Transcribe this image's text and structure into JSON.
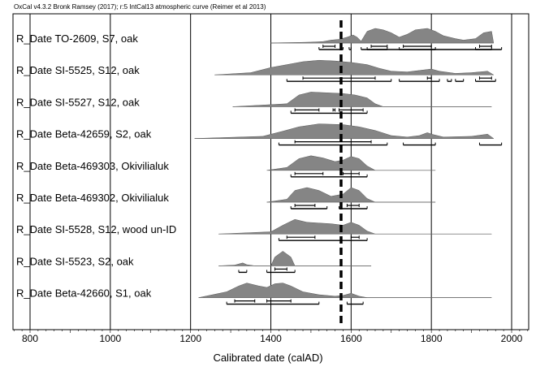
{
  "header": "OxCal v4.3.2 Bronk Ramsey (2017); r:5 IntCal13 atmospheric curve (Reimer et al 2013)",
  "chart_data": {
    "type": "area",
    "title": "",
    "header": "OxCal v4.3.2 Bronk Ramsey (2017); r:5 IntCal13 atmospheric curve (Reimer et al 2013)",
    "xlabel": "Calibrated date (calAD)",
    "ylabel": "",
    "xlim": [
      750,
      2050
    ],
    "x_ticks": [
      800,
      1000,
      1200,
      1400,
      1600,
      1800,
      2000
    ],
    "x_tick_labels": [
      "800",
      "1000",
      "1200",
      "1400",
      "1600",
      "1800",
      "2000"
    ],
    "reference_line": {
      "x": 1575,
      "style": "dashed"
    },
    "legend": "none",
    "grid": false,
    "series": [
      {
        "name": "R_Date TO-2609, S7, oak",
        "range": [
          1400,
          1955
        ],
        "density": [
          [
            1400,
            0
          ],
          [
            1430,
            2
          ],
          [
            1470,
            4
          ],
          [
            1500,
            6
          ],
          [
            1530,
            10
          ],
          [
            1550,
            20
          ],
          [
            1570,
            25
          ],
          [
            1590,
            40
          ],
          [
            1605,
            55
          ],
          [
            1615,
            40
          ],
          [
            1625,
            12
          ],
          [
            1640,
            80
          ],
          [
            1660,
            100
          ],
          [
            1680,
            90
          ],
          [
            1700,
            70
          ],
          [
            1720,
            40
          ],
          [
            1740,
            60
          ],
          [
            1760,
            90
          ],
          [
            1790,
            100
          ],
          [
            1810,
            80
          ],
          [
            1830,
            50
          ],
          [
            1860,
            30
          ],
          [
            1880,
            20
          ],
          [
            1910,
            30
          ],
          [
            1930,
            70
          ],
          [
            1950,
            80
          ],
          [
            1955,
            0
          ]
        ],
        "hpd_95": [
          [
            1520,
            1580
          ],
          [
            1595,
            1600
          ],
          [
            1625,
            1975
          ],
          [
            1640,
            1690
          ],
          [
            1720,
            1810
          ],
          [
            1910,
            1950
          ]
        ],
        "hpd_68": [
          [
            1530,
            1560
          ],
          [
            1650,
            1690
          ],
          [
            1730,
            1800
          ],
          [
            1920,
            1950
          ]
        ]
      },
      {
        "name": "R_Date SI-5525, S12, oak",
        "range": [
          1260,
          1955
        ],
        "density": [
          [
            1260,
            0
          ],
          [
            1350,
            15
          ],
          [
            1400,
            50
          ],
          [
            1440,
            70
          ],
          [
            1480,
            90
          ],
          [
            1520,
            100
          ],
          [
            1560,
            95
          ],
          [
            1600,
            85
          ],
          [
            1640,
            70
          ],
          [
            1670,
            45
          ],
          [
            1700,
            25
          ],
          [
            1740,
            20
          ],
          [
            1770,
            30
          ],
          [
            1800,
            40
          ],
          [
            1820,
            25
          ],
          [
            1860,
            10
          ],
          [
            1900,
            15
          ],
          [
            1940,
            25
          ],
          [
            1955,
            0
          ]
        ],
        "hpd_95": [
          [
            1440,
            1700
          ],
          [
            1720,
            1820
          ],
          [
            1840,
            1850
          ],
          [
            1860,
            1880
          ],
          [
            1910,
            1960
          ]
        ],
        "hpd_68": [
          [
            1480,
            1660
          ],
          [
            1790,
            1800
          ],
          [
            1920,
            1950
          ]
        ]
      },
      {
        "name": "R_Date SI-5527, S12, oak",
        "range": [
          1305,
          1950
        ],
        "density": [
          [
            1305,
            0
          ],
          [
            1440,
            20
          ],
          [
            1470,
            80
          ],
          [
            1500,
            100
          ],
          [
            1540,
            95
          ],
          [
            1580,
            90
          ],
          [
            1610,
            80
          ],
          [
            1640,
            60
          ],
          [
            1660,
            20
          ],
          [
            1680,
            0
          ],
          [
            1950,
            0
          ]
        ],
        "hpd_95": [
          [
            1450,
            1640
          ]
        ],
        "hpd_68": [
          [
            1460,
            1520
          ],
          [
            1555,
            1560
          ],
          [
            1570,
            1630
          ]
        ]
      },
      {
        "name": "R_Date Beta-42659, S2, oak",
        "range": [
          1210,
          1955
        ],
        "density": [
          [
            1210,
            0
          ],
          [
            1380,
            15
          ],
          [
            1430,
            50
          ],
          [
            1470,
            80
          ],
          [
            1520,
            100
          ],
          [
            1580,
            95
          ],
          [
            1620,
            80
          ],
          [
            1660,
            55
          ],
          [
            1700,
            20
          ],
          [
            1740,
            10
          ],
          [
            1770,
            20
          ],
          [
            1790,
            40
          ],
          [
            1800,
            30
          ],
          [
            1830,
            10
          ],
          [
            1900,
            15
          ],
          [
            1940,
            30
          ],
          [
            1955,
            0
          ]
        ],
        "hpd_95": [
          [
            1420,
            1690
          ],
          [
            1730,
            1810
          ],
          [
            1920,
            1975
          ]
        ],
        "hpd_68": [
          [
            1460,
            1650
          ]
        ]
      },
      {
        "name": "R_Date Beta-469303, Okivilialuk",
        "range": [
          1390,
          1810
        ],
        "density": [
          [
            1390,
            0
          ],
          [
            1440,
            20
          ],
          [
            1470,
            80
          ],
          [
            1500,
            100
          ],
          [
            1530,
            85
          ],
          [
            1560,
            60
          ],
          [
            1580,
            70
          ],
          [
            1600,
            95
          ],
          [
            1620,
            80
          ],
          [
            1640,
            30
          ],
          [
            1660,
            0
          ],
          [
            1810,
            0
          ]
        ],
        "hpd_95": [
          [
            1450,
            1640
          ]
        ],
        "hpd_68": [
          [
            1460,
            1530
          ],
          [
            1580,
            1620
          ]
        ]
      },
      {
        "name": "R_Date Beta-469302, Okivilialuk",
        "range": [
          1390,
          1810
        ],
        "density": [
          [
            1390,
            0
          ],
          [
            1440,
            20
          ],
          [
            1460,
            80
          ],
          [
            1490,
            100
          ],
          [
            1520,
            80
          ],
          [
            1550,
            40
          ],
          [
            1580,
            55
          ],
          [
            1600,
            100
          ],
          [
            1620,
            80
          ],
          [
            1640,
            25
          ],
          [
            1660,
            0
          ],
          [
            1810,
            0
          ]
        ],
        "hpd_95": [
          [
            1450,
            1540
          ],
          [
            1570,
            1640
          ]
        ],
        "hpd_68": [
          [
            1460,
            1510
          ],
          [
            1590,
            1620
          ]
        ]
      },
      {
        "name": "R_Date SI-5528, S12, wood un-ID",
        "range": [
          1270,
          1950
        ],
        "density": [
          [
            1270,
            0
          ],
          [
            1400,
            15
          ],
          [
            1430,
            60
          ],
          [
            1460,
            100
          ],
          [
            1490,
            80
          ],
          [
            1520,
            75
          ],
          [
            1550,
            70
          ],
          [
            1580,
            60
          ],
          [
            1600,
            80
          ],
          [
            1620,
            60
          ],
          [
            1640,
            20
          ],
          [
            1660,
            0
          ],
          [
            1950,
            0
          ]
        ],
        "hpd_95": [
          [
            1420,
            1640
          ]
        ],
        "hpd_68": [
          [
            1440,
            1510
          ],
          [
            1600,
            1620
          ]
        ]
      },
      {
        "name": "R_Date SI-5523, S2, oak",
        "range": [
          1270,
          1650
        ],
        "density": [
          [
            1270,
            0
          ],
          [
            1310,
            5
          ],
          [
            1330,
            20
          ],
          [
            1340,
            8
          ],
          [
            1360,
            0
          ],
          [
            1400,
            0
          ],
          [
            1410,
            60
          ],
          [
            1430,
            100
          ],
          [
            1450,
            60
          ],
          [
            1460,
            0
          ],
          [
            1650,
            0
          ]
        ],
        "hpd_95": [
          [
            1320,
            1340
          ],
          [
            1390,
            1460
          ]
        ],
        "hpd_68": [
          [
            1410,
            1440
          ]
        ]
      },
      {
        "name": "R_Date Beta-42660, S1, oak",
        "range": [
          1220,
          1950
        ],
        "density": [
          [
            1220,
            0
          ],
          [
            1290,
            40
          ],
          [
            1320,
            80
          ],
          [
            1340,
            100
          ],
          [
            1370,
            80
          ],
          [
            1390,
            70
          ],
          [
            1410,
            95
          ],
          [
            1430,
            100
          ],
          [
            1450,
            80
          ],
          [
            1480,
            40
          ],
          [
            1520,
            20
          ],
          [
            1560,
            10
          ],
          [
            1580,
            15
          ],
          [
            1600,
            30
          ],
          [
            1620,
            10
          ],
          [
            1640,
            0
          ],
          [
            1950,
            0
          ]
        ],
        "hpd_95": [
          [
            1290,
            1520
          ],
          [
            1590,
            1630
          ]
        ],
        "hpd_68": [
          [
            1310,
            1360
          ],
          [
            1390,
            1450
          ]
        ]
      }
    ]
  }
}
